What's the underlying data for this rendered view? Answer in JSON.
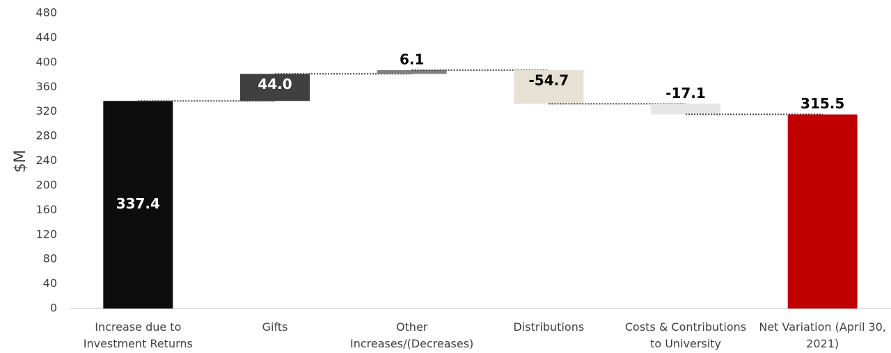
{
  "chart_data": {
    "type": "waterfall",
    "y_label": "$M",
    "categories": [
      "Increase due to Investment Returns",
      "Gifts",
      "Other Increases/(Decreases)",
      "Distributions",
      "Costs & Contributions to University",
      "Net Variation (April 30, 2021)"
    ],
    "values": [
      337.4,
      44,
      6.1,
      -54.7,
      -17.1,
      315.5
    ],
    "value_labels": [
      "337.4",
      "44.0",
      "6.1",
      "-54.7",
      "-17.1",
      "315.5"
    ],
    "measure": [
      "relative",
      "relative",
      "relative",
      "relative",
      "relative",
      "total"
    ],
    "colors": [
      "#0d0d0d",
      "#404040",
      "#7f7f7f",
      "#e6e1d3",
      "#e6e6e6",
      "#c00000"
    ],
    "ylim": [
      0,
      480
    ],
    "yticks": [
      0,
      40,
      80,
      120,
      160,
      200,
      240,
      280,
      320,
      360,
      400,
      440,
      480
    ],
    "grid": false
  }
}
